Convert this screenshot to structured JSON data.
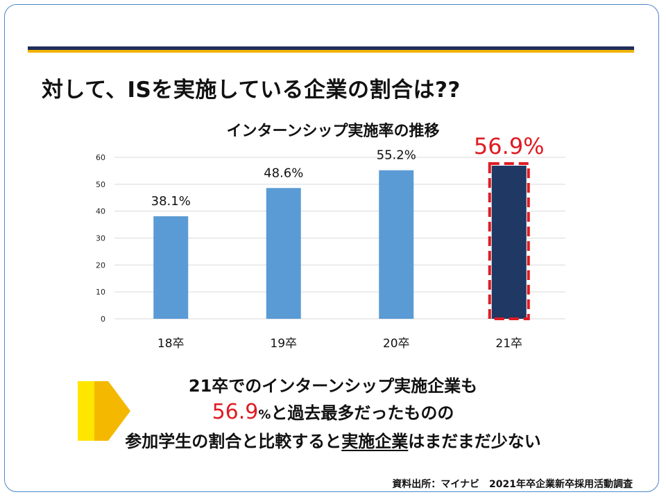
{
  "slide": {
    "title": "対して、ISを実施している企業の割合は??",
    "source": "資料出所：マイナビ　2021年卒企業新卒採用活動調査"
  },
  "summary": {
    "line1": "21卒でのインターンシップ実施企業も",
    "line2_value": "56.9",
    "line2_pct": "%",
    "line2_rest": "と過去最多だったものの",
    "line3_a": "参加学生の割合と比較すると",
    "line3_b": "実施企業",
    "line3_c": "はまだまだ少ない"
  },
  "colors": {
    "bar": "#5b9bd5",
    "highlight_bar": "#1f3864",
    "highlight_border": "#e01b22",
    "highlight_text": "#e01b22",
    "arrow1": "#ffe600",
    "arrow2": "#f5b800"
  },
  "chart_data": {
    "type": "bar",
    "title": "インターンシップ実施率の推移",
    "categories": [
      "18卒",
      "19卒",
      "20卒",
      "21卒"
    ],
    "values": [
      38.1,
      48.6,
      55.2,
      56.9
    ],
    "data_labels": [
      "38.1%",
      "48.6%",
      "55.2%",
      "56.9%"
    ],
    "highlight_index": 3,
    "ylim": [
      0,
      60
    ],
    "yticks": [
      0,
      10,
      20,
      30,
      40,
      50,
      60
    ],
    "grid": true,
    "legend": "none"
  }
}
